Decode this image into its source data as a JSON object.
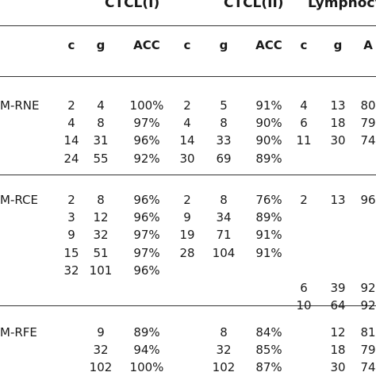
{
  "headers": {
    "groups": [
      "CTCL(I)",
      "CTCL(II)",
      "Lymphocy"
    ],
    "sub": [
      "c",
      "g",
      "ACC",
      "c",
      "g",
      "ACC",
      "c",
      "g",
      "A"
    ]
  },
  "sections": [
    {
      "label": "M-RNE",
      "rows": [
        [
          "2",
          "4",
          "100%",
          "2",
          "5",
          "91%",
          "4",
          "13",
          "80"
        ],
        [
          "4",
          "8",
          "97%",
          "4",
          "8",
          "90%",
          "6",
          "18",
          "79"
        ],
        [
          "14",
          "31",
          "96%",
          "14",
          "33",
          "90%",
          "11",
          "30",
          "74"
        ],
        [
          "24",
          "55",
          "92%",
          "30",
          "69",
          "89%",
          "",
          "",
          ""
        ]
      ]
    },
    {
      "label": "M-RCE",
      "rows": [
        [
          "2",
          "8",
          "96%",
          "2",
          "8",
          "76%",
          "2",
          "13",
          "96"
        ],
        [
          "3",
          "12",
          "96%",
          "9",
          "34",
          "89%",
          "",
          "",
          ""
        ],
        [
          "9",
          "32",
          "97%",
          "19",
          "71",
          "91%",
          "",
          "",
          ""
        ],
        [
          "15",
          "51",
          "97%",
          "28",
          "104",
          "91%",
          "",
          "",
          ""
        ],
        [
          "32",
          "101",
          "96%",
          "",
          "",
          "",
          "",
          "",
          ""
        ],
        [
          "",
          "",
          "",
          "",
          "",
          "",
          "6",
          "39",
          "92"
        ],
        [
          "",
          "",
          "",
          "",
          "",
          "",
          "10",
          "64",
          "92"
        ]
      ]
    },
    {
      "label": "M-RFE",
      "rows": [
        [
          "",
          "9",
          "89%",
          "",
          "8",
          "84%",
          "",
          "12",
          "81"
        ],
        [
          "",
          "32",
          "94%",
          "",
          "32",
          "85%",
          "",
          "18",
          "79"
        ],
        [
          "",
          "102",
          "100%",
          "",
          "102",
          "87%",
          "",
          "30",
          "74"
        ]
      ]
    }
  ]
}
